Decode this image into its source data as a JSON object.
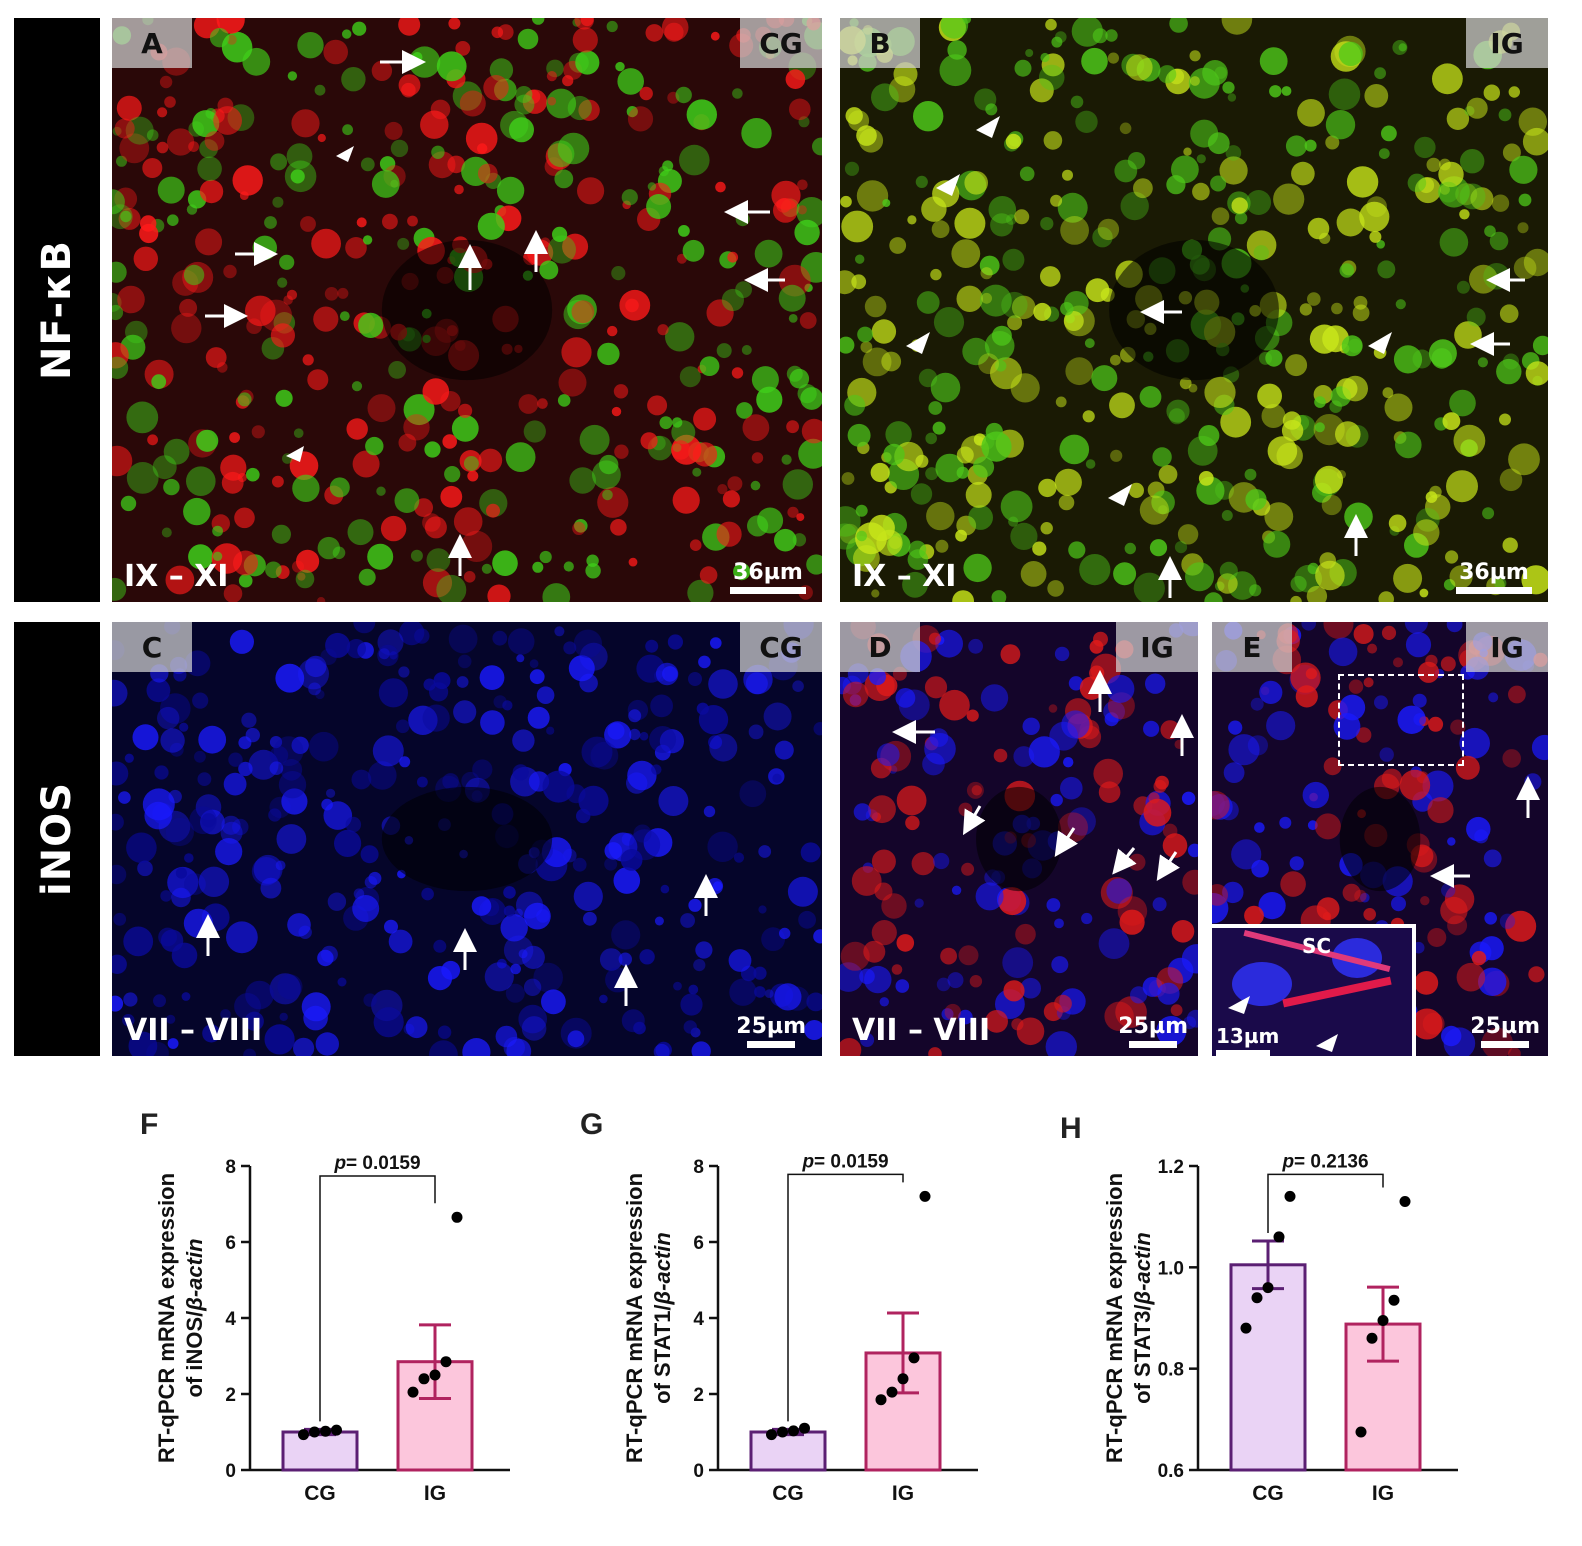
{
  "row_labels": {
    "top": "NF-κB",
    "bottom": "iNOS"
  },
  "micrographs": [
    {
      "letter": "A",
      "group": "CG",
      "stage": "IX – XI",
      "scale": "36µm",
      "bg": "#2a0808",
      "dots": [
        "#ff1a1a",
        "#3fd21a"
      ]
    },
    {
      "letter": "B",
      "group": "IG",
      "stage": "IX – XI",
      "scale": "36µm",
      "bg": "#1a1a04",
      "dots": [
        "#c8e61a",
        "#4ec81a"
      ]
    },
    {
      "letter": "C",
      "group": "CG",
      "stage": "VII – VIII",
      "scale": "25µm",
      "bg": "#05052a",
      "dots": [
        "#1a1aff",
        "#0a0a9c"
      ]
    },
    {
      "letter": "D",
      "group": "IG",
      "stage": "VII – VIII",
      "scale": "25µm",
      "bg": "#14052a",
      "dots": [
        "#1a1aff",
        "#e01a1a"
      ]
    },
    {
      "letter": "E",
      "group": "IG",
      "stage": "",
      "scale": "25µm",
      "bg": "#14052a",
      "dots": [
        "#1a1aff",
        "#e01a1a"
      ],
      "inset_scale": "13µm",
      "inset_label": "SC"
    }
  ],
  "colors": {
    "cg_fill": "#ead3f5",
    "cg_stroke": "#5b1f73",
    "ig_fill": "#fcc6dc",
    "ig_stroke": "#b0235f",
    "dot": "#000000"
  },
  "chart_data": [
    {
      "panel": "F",
      "type": "bar",
      "categories": [
        "CG",
        "IG"
      ],
      "values": [
        1.0,
        2.85
      ],
      "sem": [
        0.07,
        0.97
      ],
      "points": [
        [
          0.93,
          1.0,
          1.02,
          1.05
        ],
        [
          2.05,
          2.4,
          2.5,
          2.85,
          6.65
        ]
      ],
      "ylabel_main": "RT-qPCR mRNA expression",
      "ylabel_sub": "of iNOS/",
      "ylabel_ital": "β-actin",
      "ylim": [
        0,
        8
      ],
      "yticks": [
        "0",
        "2",
        "4",
        "6",
        "8"
      ],
      "p_label": "p",
      "p_text": "= 0.0159"
    },
    {
      "panel": "G",
      "type": "bar",
      "categories": [
        "CG",
        "IG"
      ],
      "values": [
        1.0,
        3.08
      ],
      "sem": [
        0.07,
        1.05
      ],
      "points": [
        [
          0.93,
          1.0,
          1.03,
          1.1
        ],
        [
          1.85,
          2.05,
          2.4,
          2.95,
          7.2
        ]
      ],
      "ylabel_main": "RT-qPCR mRNA expression",
      "ylabel_sub": "of STAT1/",
      "ylabel_ital": "β-actin",
      "ylim": [
        0,
        8
      ],
      "yticks": [
        "0",
        "2",
        "4",
        "6",
        "8"
      ],
      "p_label": "p",
      "p_text": "= 0.0159"
    },
    {
      "panel": "H",
      "type": "bar",
      "categories": [
        "CG",
        "IG"
      ],
      "values": [
        1.005,
        0.888
      ],
      "sem": [
        0.047,
        0.073
      ],
      "points": [
        [
          0.88,
          0.94,
          0.96,
          1.06,
          1.14
        ],
        [
          0.675,
          0.86,
          0.895,
          0.935,
          1.13
        ]
      ],
      "ylabel_main": "RT-qPCR mRNA expression",
      "ylabel_sub": "of STAT3/",
      "ylabel_ital": "β-actin",
      "ylim": [
        0.6,
        1.2
      ],
      "yticks": [
        "0.6",
        "0.8",
        "1.0",
        "1.2"
      ],
      "p_label": "p",
      "p_text": "= 0.2136"
    }
  ]
}
